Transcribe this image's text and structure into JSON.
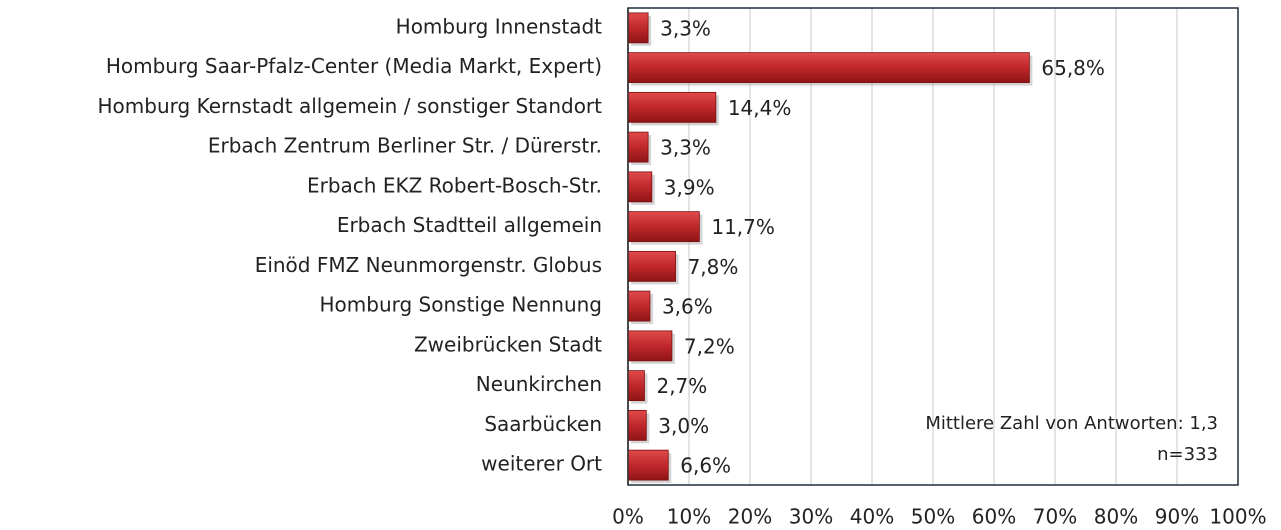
{
  "chart_data": {
    "type": "bar",
    "orientation": "horizontal",
    "categories": [
      "Homburg Innenstadt",
      "Homburg Saar-Pfalz-Center (Media Markt, Expert)",
      "Homburg Kernstadt allgemein / sonstiger Standort",
      "Erbach Zentrum Berliner Str. / Dürerstr.",
      "Erbach EKZ Robert-Bosch-Str.",
      "Erbach Stadtteil allgemein",
      "Einöd FMZ Neunmorgenstr. Globus",
      "Homburg Sonstige Nennung",
      "Zweibrücken Stadt",
      "Neunkirchen",
      "Saarbücken",
      "weiterer Ort"
    ],
    "values": [
      3.3,
      65.8,
      14.4,
      3.3,
      3.9,
      11.7,
      7.8,
      3.6,
      7.2,
      2.7,
      3.0,
      6.6
    ],
    "value_labels": [
      "3,3%",
      "65,8%",
      "14,4%",
      "3,3%",
      "3,9%",
      "11,7%",
      "7,8%",
      "3,6%",
      "7,2%",
      "2,7%",
      "3,0%",
      "6,6%"
    ],
    "color": "#c0282b",
    "xlim": [
      0,
      100
    ],
    "xticks": [
      {
        "value": 0,
        "label": "0%"
      },
      {
        "value": 10,
        "label": "10%"
      },
      {
        "value": 20,
        "label": "20%"
      },
      {
        "value": 30,
        "label": "30%"
      },
      {
        "value": 40,
        "label": "40%"
      },
      {
        "value": 50,
        "label": "50%"
      },
      {
        "value": 60,
        "label": "60%"
      },
      {
        "value": 70,
        "label": "70%"
      },
      {
        "value": 80,
        "label": "80%"
      },
      {
        "value": 90,
        "label": "90%"
      },
      {
        "value": 100,
        "label": "100%"
      }
    ],
    "grid": true,
    "annotations": [
      "Mittlere Zahl von Antworten: 1,3",
      "n=333"
    ]
  }
}
